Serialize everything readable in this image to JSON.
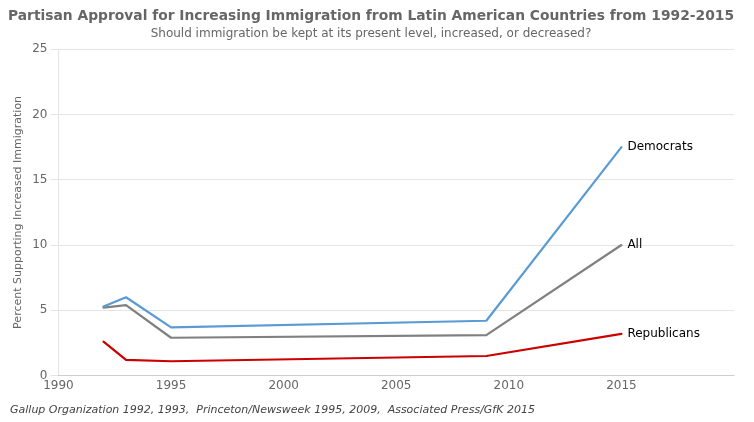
{
  "chart_data": {
    "type": "line",
    "title": "Partisan Approval for Increasing Immigration from Latin American Countries from 1992-2015",
    "subtitle": "Should immigration be kept at its present level, increased, or decreased?",
    "caption": "Gallup Organization 1992, 1993,  Princeton/Newsweek 1995, 2009,  Associated Press/GfK 2015",
    "y_label": "Percent Supporting Increased Immigration",
    "x": [
      1992,
      1993,
      1995,
      2009,
      2015
    ],
    "series": [
      {
        "name": "Democrats",
        "color": "#5b9bd5",
        "values": [
          5.3,
          6.0,
          3.7,
          4.2,
          17.5
        ]
      },
      {
        "name": "All",
        "color": "#808080",
        "values": [
          5.2,
          5.4,
          2.9,
          3.1,
          10.0
        ]
      },
      {
        "name": "Republicans",
        "color": "#cc0000",
        "values": [
          2.6,
          1.2,
          1.1,
          1.5,
          3.2
        ]
      }
    ],
    "annotations": [
      {
        "text": "Democrats",
        "x": 2015,
        "y": 17.5
      },
      {
        "text": "All",
        "x": 2015,
        "y": 10.0
      },
      {
        "text": "Republicans",
        "x": 2015,
        "y": 3.2
      }
    ],
    "xlim": [
      1990,
      2020
    ],
    "xticks": [
      1990,
      1995,
      2000,
      2005,
      2010,
      2015
    ],
    "ylim": [
      0,
      25
    ],
    "yticks": [
      0,
      5,
      10,
      15,
      20,
      25
    ],
    "grid": "y"
  }
}
